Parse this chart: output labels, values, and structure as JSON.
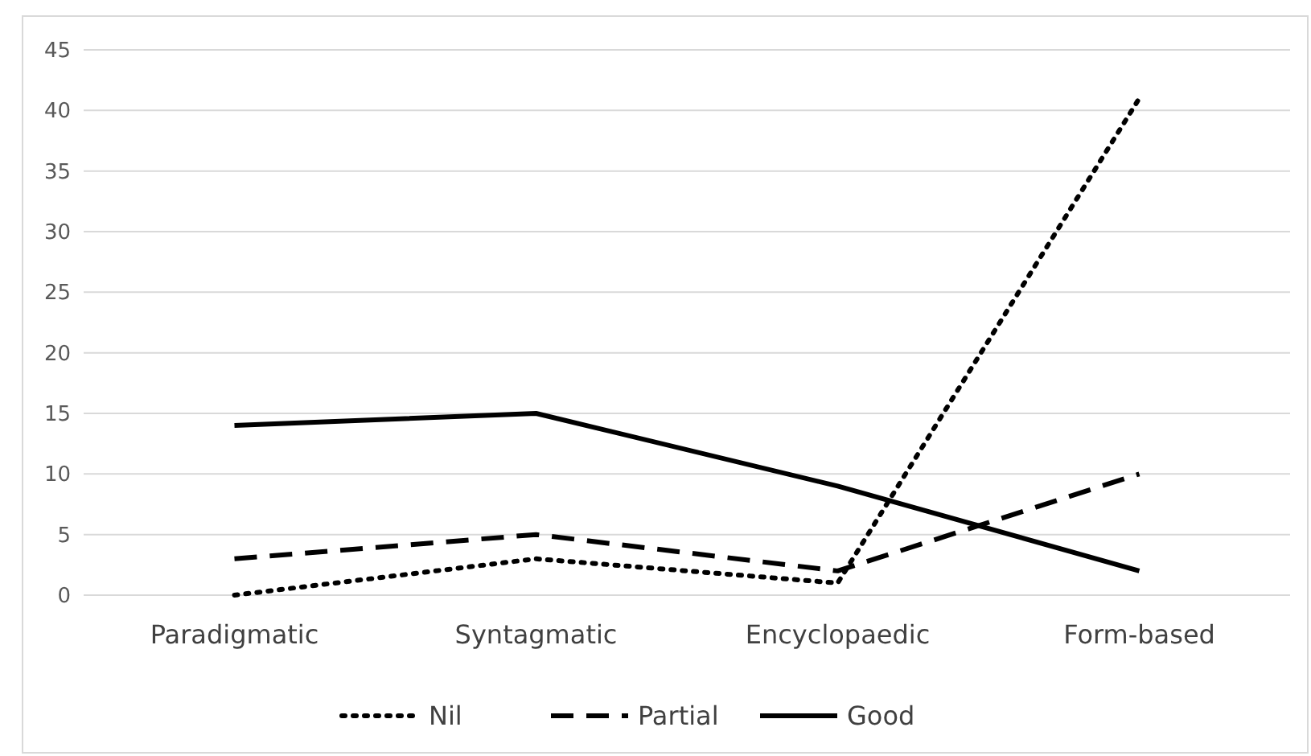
{
  "chart_data": {
    "type": "line",
    "categories": [
      "Paradigmatic",
      "Syntagmatic",
      "Encyclopaedic",
      "Form-based"
    ],
    "series": [
      {
        "name": "Nil",
        "color": "#000000",
        "line_style": "dotted",
        "values": [
          0,
          3,
          1,
          41
        ]
      },
      {
        "name": "Partial",
        "color": "#000000",
        "line_style": "dashed",
        "values": [
          3,
          5,
          2,
          10
        ]
      },
      {
        "name": "Good",
        "color": "#000000",
        "line_style": "solid",
        "values": [
          14,
          15,
          9,
          2
        ]
      }
    ],
    "ylim": [
      0,
      45
    ],
    "yticks": [
      0,
      5,
      10,
      15,
      20,
      25,
      30,
      35,
      40,
      45
    ],
    "grid": "y",
    "legend": "bottom"
  }
}
